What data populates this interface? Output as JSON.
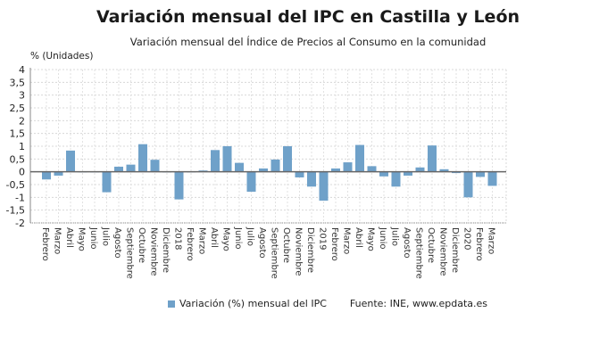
{
  "chart_data": {
    "type": "bar",
    "title": "Variación mensual del IPC en Castilla y León",
    "subtitle": "Variación mensual del Índice de Precios al Consumo en la comunidad",
    "ylabel": "% (Unidades)",
    "xlabel": "",
    "ylim": [
      -2,
      4
    ],
    "yticks": [
      4,
      3.5,
      3,
      2.5,
      2,
      1.5,
      1,
      0.5,
      0,
      -0.5,
      -1,
      -1.5,
      -2
    ],
    "ytick_labels": [
      "4",
      "3,5",
      "3",
      "2,5",
      "2",
      "1,5",
      "1",
      "0,5",
      "0",
      "-0,5",
      "-1",
      "-1,5",
      "-2"
    ],
    "grid": true,
    "legend_position": "bottom",
    "categories": [
      "Febrero",
      "Marzo",
      "Abril",
      "Mayo",
      "Junio",
      "Julio",
      "Agosto",
      "Septiembre",
      "Octubre",
      "Noviembre",
      "Diciembre",
      "2018",
      "Febrero",
      "Marzo",
      "Abril",
      "Mayo",
      "Junio",
      "Julio",
      "Agosto",
      "Septiembre",
      "Octubre",
      "Noviembre",
      "Diciembre",
      "2019",
      "Febrero",
      "Marzo",
      "Abril",
      "Mayo",
      "Junio",
      "Julio",
      "Agosto",
      "Septiembre",
      "Octubre",
      "Noviembre",
      "Diciembre",
      "2020",
      "Febrero",
      "Marzo"
    ],
    "series": [
      {
        "name": "Variación (%) mensual del IPC",
        "color": "#6fa1c9",
        "values": [
          -0.3,
          -0.15,
          0.83,
          0.0,
          0.0,
          -0.8,
          0.2,
          0.28,
          1.08,
          0.47,
          0.0,
          -1.08,
          0.0,
          0.05,
          0.85,
          1.0,
          0.35,
          -0.78,
          0.13,
          0.48,
          1.0,
          -0.22,
          -0.58,
          -1.13,
          0.13,
          0.37,
          1.05,
          0.22,
          -0.18,
          -0.58,
          -0.15,
          0.17,
          1.03,
          0.1,
          -0.05,
          -1.0,
          -0.2,
          -0.55
        ]
      }
    ],
    "source": "Fuente: INE, www.epdata.es"
  }
}
